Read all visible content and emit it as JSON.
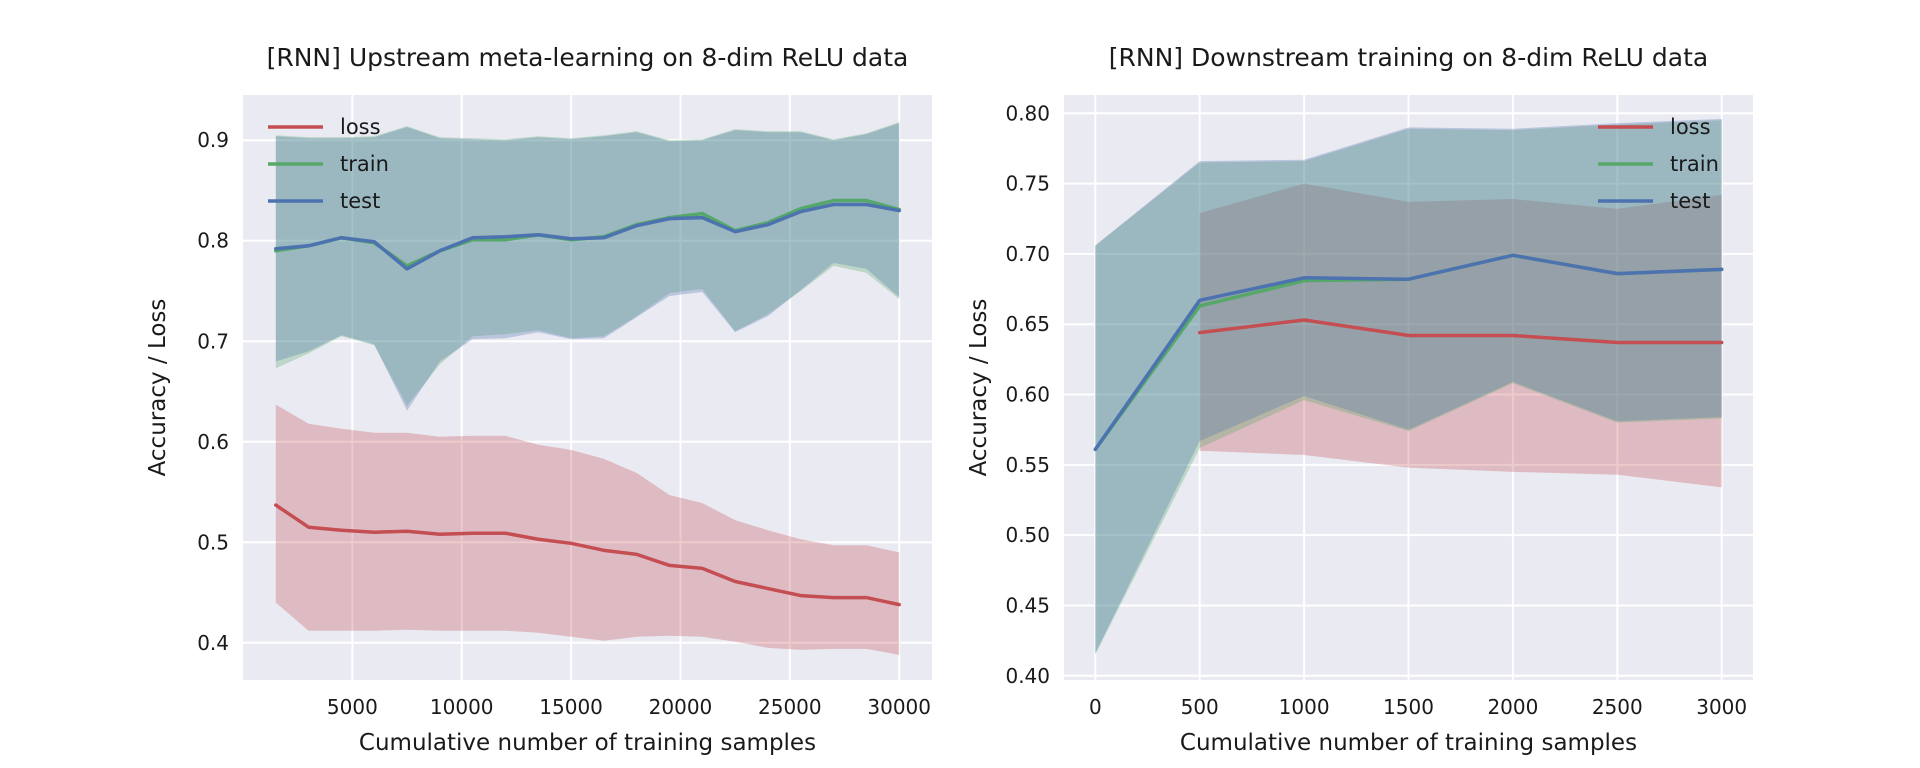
{
  "chart_data": [
    {
      "type": "line",
      "title": "[RNN] Upstream meta-learning on 8-dim ReLU data",
      "xlabel": "Cumulative number of training samples",
      "ylabel": "Accuracy / Loss",
      "xlim": [
        0,
        31500
      ],
      "ylim": [
        0.363,
        0.945
      ],
      "xticks": [
        5000,
        10000,
        15000,
        20000,
        25000,
        30000
      ],
      "yticks": [
        0.4,
        0.5,
        0.6,
        0.7,
        0.8,
        0.9
      ],
      "grid": true,
      "legend_position": "top-left",
      "x": [
        1500,
        3000,
        4500,
        6000,
        7500,
        9000,
        10500,
        12000,
        13500,
        15000,
        16500,
        18000,
        19500,
        21000,
        22500,
        24000,
        25500,
        27000,
        28500,
        30000
      ],
      "series": [
        {
          "name": "loss",
          "color": "#c44e52",
          "values": [
            0.537,
            0.515,
            0.512,
            0.51,
            0.511,
            0.508,
            0.509,
            0.509,
            0.503,
            0.499,
            0.492,
            0.488,
            0.477,
            0.474,
            0.461,
            0.454,
            0.447,
            0.445,
            0.445,
            0.438
          ],
          "lower": [
            0.44,
            0.412,
            0.412,
            0.412,
            0.413,
            0.412,
            0.412,
            0.412,
            0.41,
            0.406,
            0.402,
            0.406,
            0.407,
            0.406,
            0.401,
            0.395,
            0.393,
            0.394,
            0.394,
            0.388
          ],
          "upper": [
            0.637,
            0.618,
            0.613,
            0.609,
            0.609,
            0.605,
            0.606,
            0.606,
            0.597,
            0.592,
            0.583,
            0.569,
            0.547,
            0.539,
            0.522,
            0.512,
            0.503,
            0.497,
            0.497,
            0.49
          ]
        },
        {
          "name": "train",
          "color": "#55a868",
          "values": [
            0.79,
            0.795,
            0.803,
            0.798,
            0.775,
            0.79,
            0.801,
            0.801,
            0.806,
            0.801,
            0.804,
            0.816,
            0.823,
            0.827,
            0.81,
            0.818,
            0.832,
            0.84,
            0.84,
            0.831
          ],
          "lower": [
            0.673,
            0.688,
            0.705,
            0.696,
            0.636,
            0.677,
            0.705,
            0.707,
            0.711,
            0.703,
            0.705,
            0.725,
            0.748,
            0.752,
            0.71,
            0.727,
            0.75,
            0.775,
            0.768,
            0.742
          ],
          "upper": [
            0.905,
            0.903,
            0.903,
            0.904,
            0.914,
            0.903,
            0.902,
            0.901,
            0.904,
            0.902,
            0.905,
            0.909,
            0.9,
            0.901,
            0.911,
            0.909,
            0.909,
            0.901,
            0.907,
            0.918
          ]
        },
        {
          "name": "test",
          "color": "#4c72b0",
          "values": [
            0.792,
            0.795,
            0.803,
            0.799,
            0.772,
            0.79,
            0.803,
            0.804,
            0.806,
            0.802,
            0.803,
            0.815,
            0.822,
            0.823,
            0.809,
            0.816,
            0.829,
            0.836,
            0.836,
            0.83
          ],
          "lower": [
            0.68,
            0.69,
            0.706,
            0.697,
            0.631,
            0.68,
            0.702,
            0.703,
            0.709,
            0.702,
            0.703,
            0.724,
            0.745,
            0.749,
            0.709,
            0.725,
            0.751,
            0.778,
            0.772,
            0.744
          ],
          "upper": [
            0.904,
            0.902,
            0.902,
            0.903,
            0.913,
            0.902,
            0.901,
            0.9,
            0.903,
            0.901,
            0.904,
            0.908,
            0.899,
            0.9,
            0.91,
            0.908,
            0.908,
            0.9,
            0.906,
            0.917
          ]
        }
      ]
    },
    {
      "type": "line",
      "title": "[RNN] Downstream training on 8-dim ReLU data",
      "xlabel": "Cumulative number of training samples",
      "ylabel": "Accuracy / Loss",
      "xlim": [
        -150,
        3150
      ],
      "ylim": [
        0.397,
        0.813
      ],
      "xticks": [
        0,
        500,
        1000,
        1500,
        2000,
        2500,
        3000
      ],
      "yticks": [
        0.4,
        0.45,
        0.5,
        0.55,
        0.6,
        0.65,
        0.7,
        0.75,
        0.8
      ],
      "grid": true,
      "legend_position": "top-right",
      "series": [
        {
          "name": "loss",
          "color": "#c44e52",
          "x": [
            500,
            1000,
            1500,
            2000,
            2500,
            3000
          ],
          "values": [
            0.644,
            0.653,
            0.642,
            0.642,
            0.637,
            0.637
          ],
          "lower": [
            0.56,
            0.557,
            0.548,
            0.545,
            0.543,
            0.534
          ],
          "upper": [
            0.729,
            0.75,
            0.737,
            0.739,
            0.732,
            0.742
          ]
        },
        {
          "name": "train",
          "color": "#55a868",
          "x": [
            0,
            500,
            1000,
            1500,
            2000,
            2500,
            3000
          ],
          "values": [
            0.561,
            0.663,
            0.681,
            0.682,
            0.699,
            0.686,
            0.689
          ],
          "lower": [
            0.415,
            0.562,
            0.596,
            0.574,
            0.608,
            0.58,
            0.583
          ],
          "upper": [
            0.706,
            0.765,
            0.766,
            0.789,
            0.788,
            0.792,
            0.795
          ]
        },
        {
          "name": "test",
          "color": "#4c72b0",
          "x": [
            0,
            500,
            1000,
            1500,
            2000,
            2500,
            3000
          ],
          "values": [
            0.561,
            0.667,
            0.683,
            0.682,
            0.699,
            0.686,
            0.689
          ],
          "lower": [
            0.416,
            0.567,
            0.599,
            0.575,
            0.609,
            0.581,
            0.584
          ],
          "upper": [
            0.706,
            0.766,
            0.767,
            0.79,
            0.789,
            0.793,
            0.796
          ]
        }
      ]
    }
  ]
}
